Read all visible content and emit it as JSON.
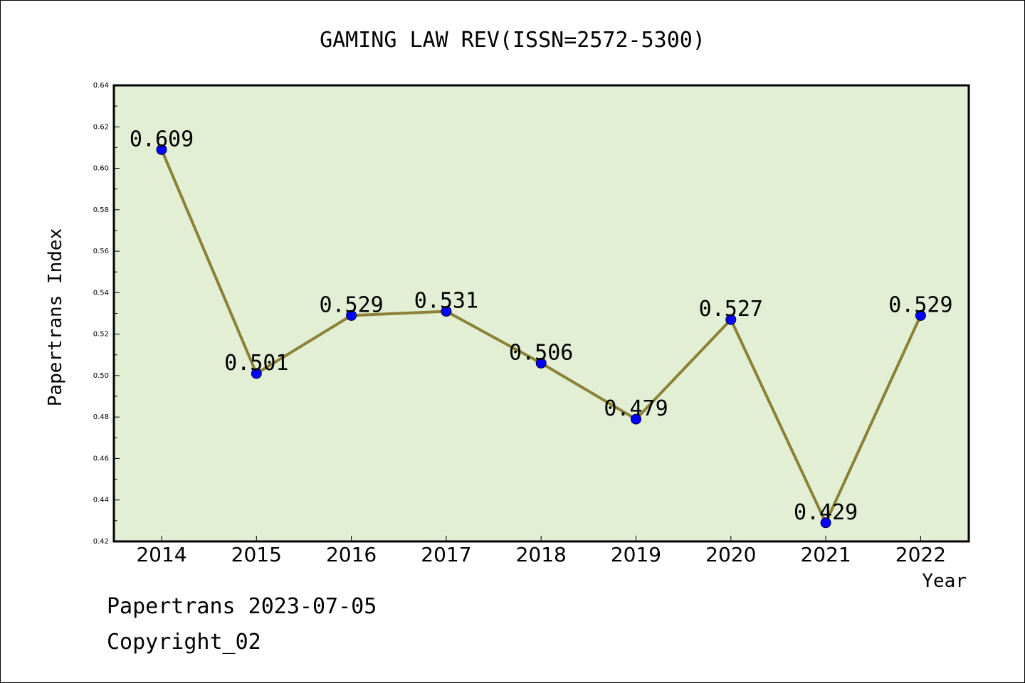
{
  "chart_data": {
    "type": "line",
    "title": "GAMING LAW REV(ISSN=2572-5300)",
    "xlabel": "Year",
    "ylabel": "Papertrans Index",
    "categories": [
      "2014",
      "2015",
      "2016",
      "2017",
      "2018",
      "2019",
      "2020",
      "2021",
      "2022"
    ],
    "series": [
      {
        "values": [
          0.609,
          0.501,
          0.529,
          0.531,
          0.506,
          0.479,
          0.527,
          0.429,
          0.529
        ]
      }
    ],
    "data_labels": [
      "0.609",
      "0.501",
      "0.529",
      "0.531",
      "0.506",
      "0.479",
      "0.527",
      "0.429",
      "0.529"
    ],
    "ylim": [
      0.42,
      0.64
    ],
    "yticks": [
      0.42,
      0.44,
      0.46,
      0.48,
      0.5,
      0.52,
      0.54,
      0.56,
      0.58,
      0.6,
      0.62,
      0.64
    ],
    "ytick_labels": [
      "0.42",
      "0.44",
      "0.46",
      "0.48",
      "0.50",
      "0.52",
      "0.54",
      "0.56",
      "0.58",
      "0.60",
      "0.62",
      "0.64"
    ],
    "grid": false,
    "colors": {
      "plot_background": "#e2efd4",
      "line": "#8b8136",
      "marker": "#0000ff"
    }
  },
  "footer": {
    "date_line": "Papertrans 2023-07-05",
    "copyright": "Copyright_02"
  }
}
